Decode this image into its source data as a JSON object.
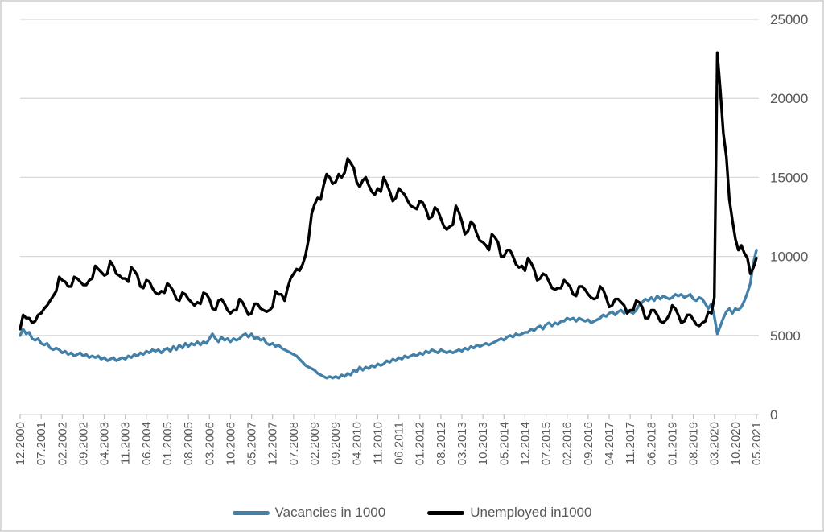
{
  "chart_data": {
    "type": "line",
    "title": "",
    "xlabel": "",
    "ylabel": "",
    "ylim": [
      0,
      25000
    ],
    "y_ticks": [
      0,
      5000,
      10000,
      15000,
      20000,
      25000
    ],
    "grid": true,
    "y_axis_side": "right",
    "x_label_rotation": -90,
    "legend_position": "bottom",
    "x_unit": "month",
    "months_between_ticks": 7,
    "x_tick_labels": [
      "12.2000",
      "07.2001",
      "02.2002",
      "09.2002",
      "04.2003",
      "11.2003",
      "06.2004",
      "01.2005",
      "08.2005",
      "03.2006",
      "10.2006",
      "05.2007",
      "12.2007",
      "07.2008",
      "02.2009",
      "09.2009",
      "04.2010",
      "11.2010",
      "06.2011",
      "01.2012",
      "08.2012",
      "03.2013",
      "10.2013",
      "05.2014",
      "12.2014",
      "07.2015",
      "02.2016",
      "09.2016",
      "04.2017",
      "11.2017",
      "06.2018",
      "01.2019",
      "08.2019",
      "03.2020",
      "10.2020",
      "05.2021"
    ],
    "series": [
      {
        "name": "Vacancies in 1000",
        "color": "#4380a8",
        "values": [
          5000,
          5400,
          5100,
          5200,
          4800,
          4700,
          4800,
          4500,
          4400,
          4500,
          4200,
          4100,
          4200,
          4100,
          3900,
          4000,
          3800,
          3900,
          3700,
          3800,
          3900,
          3700,
          3800,
          3600,
          3700,
          3600,
          3700,
          3500,
          3600,
          3400,
          3500,
          3600,
          3400,
          3500,
          3600,
          3500,
          3700,
          3600,
          3800,
          3700,
          3900,
          3800,
          4000,
          3900,
          4100,
          4000,
          4100,
          3900,
          4100,
          4200,
          4000,
          4300,
          4100,
          4400,
          4200,
          4500,
          4300,
          4500,
          4400,
          4600,
          4400,
          4600,
          4500,
          4800,
          5100,
          4800,
          4600,
          4900,
          4700,
          4800,
          4600,
          4800,
          4700,
          4800,
          5000,
          5100,
          4900,
          5100,
          4800,
          4900,
          4700,
          4800,
          4500,
          4400,
          4500,
          4300,
          4400,
          4200,
          4100,
          4000,
          3900,
          3800,
          3700,
          3500,
          3300,
          3100,
          3000,
          2900,
          2800,
          2600,
          2500,
          2400,
          2300,
          2400,
          2300,
          2400,
          2300,
          2500,
          2400,
          2600,
          2500,
          2800,
          2700,
          3000,
          2800,
          3000,
          2900,
          3100,
          3000,
          3200,
          3100,
          3200,
          3400,
          3300,
          3500,
          3400,
          3600,
          3500,
          3700,
          3600,
          3700,
          3800,
          3700,
          3900,
          3800,
          4000,
          3900,
          4100,
          4000,
          3900,
          4100,
          4000,
          3900,
          4000,
          3900,
          4000,
          4100,
          4000,
          4200,
          4100,
          4300,
          4200,
          4400,
          4300,
          4400,
          4500,
          4400,
          4500,
          4600,
          4700,
          4800,
          4700,
          4900,
          5000,
          4900,
          5100,
          5000,
          5100,
          5200,
          5200,
          5400,
          5300,
          5500,
          5600,
          5400,
          5700,
          5800,
          5600,
          5800,
          5700,
          5900,
          5900,
          6100,
          6000,
          6100,
          5900,
          6100,
          6000,
          5900,
          6000,
          5800,
          5900,
          6000,
          6100,
          6300,
          6200,
          6400,
          6500,
          6300,
          6500,
          6600,
          6400,
          6600,
          6500,
          6400,
          6600,
          6900,
          7100,
          7300,
          7200,
          7400,
          7200,
          7500,
          7300,
          7500,
          7400,
          7300,
          7400,
          7600,
          7500,
          7600,
          7400,
          7500,
          7600,
          7300,
          7200,
          7400,
          7300,
          7000,
          6700,
          7000,
          6200,
          5100,
          5600,
          6100,
          6500,
          6700,
          6400,
          6700,
          6600,
          6800,
          7200,
          7700,
          8300,
          9600,
          10400
        ]
      },
      {
        "name": "Unemployed in1000",
        "color": "#000000",
        "values": [
          5400,
          6300,
          6100,
          6100,
          5800,
          5900,
          6300,
          6400,
          6700,
          6900,
          7200,
          7500,
          7800,
          8700,
          8500,
          8400,
          8100,
          8100,
          8700,
          8600,
          8400,
          8200,
          8200,
          8500,
          8600,
          9400,
          9200,
          9000,
          8800,
          8900,
          9700,
          9400,
          8900,
          8800,
          8600,
          8600,
          8400,
          9300,
          9100,
          8800,
          8100,
          8000,
          8500,
          8400,
          8000,
          7700,
          7600,
          7800,
          7700,
          8300,
          8100,
          7800,
          7300,
          7200,
          7700,
          7600,
          7300,
          7100,
          6900,
          7100,
          7000,
          7700,
          7600,
          7300,
          6700,
          6600,
          7200,
          7300,
          7000,
          6600,
          6400,
          6600,
          6600,
          7300,
          7100,
          6700,
          6300,
          6400,
          7000,
          7000,
          6700,
          6600,
          6500,
          6600,
          6800,
          7800,
          7600,
          7600,
          7200,
          8000,
          8600,
          8900,
          9200,
          9100,
          9500,
          10100,
          11100,
          12700,
          13300,
          13700,
          13600,
          14500,
          15200,
          15000,
          14600,
          14700,
          15200,
          15000,
          15300,
          16200,
          15900,
          15600,
          14700,
          14400,
          14800,
          15000,
          14500,
          14100,
          13900,
          14300,
          14100,
          15000,
          14600,
          14100,
          13500,
          13700,
          14300,
          14100,
          13900,
          13500,
          13200,
          13100,
          13000,
          13500,
          13400,
          13000,
          12400,
          12500,
          13100,
          12900,
          12400,
          11900,
          11700,
          11900,
          12000,
          13200,
          12800,
          12200,
          11400,
          11600,
          12200,
          12000,
          11400,
          11000,
          10900,
          10700,
          10400,
          11400,
          11200,
          10900,
          10000,
          10000,
          10400,
          10400,
          10000,
          9500,
          9300,
          9400,
          9100,
          9900,
          9600,
          9200,
          8500,
          8600,
          8900,
          8800,
          8400,
          8000,
          7900,
          8000,
          8000,
          8500,
          8300,
          8100,
          7600,
          7500,
          8100,
          8100,
          7900,
          7600,
          7400,
          7300,
          7400,
          8100,
          7900,
          7400,
          6800,
          6900,
          7300,
          7300,
          7100,
          6900,
          6400,
          6600,
          6600,
          7200,
          7100,
          6800,
          6100,
          6100,
          6600,
          6600,
          6300,
          5900,
          5800,
          6000,
          6300,
          6900,
          6700,
          6300,
          5800,
          5900,
          6300,
          6300,
          6000,
          5700,
          5600,
          5800,
          5900,
          6500,
          6400,
          7400,
          22900,
          20500,
          17800,
          16300,
          13600,
          12300,
          11100,
          10400,
          10700,
          10200,
          9900,
          8900,
          9300,
          9900
        ]
      }
    ]
  },
  "legend": {
    "items": [
      {
        "label": "Vacancies in 1000",
        "color": "#4380a8"
      },
      {
        "label": "Unemployed in1000",
        "color": "#000000"
      }
    ]
  },
  "colors": {
    "gridline": "#d9d9d9",
    "tick": "#bfbfbf",
    "axis_text": "#595959",
    "frame_border": "#d9d9d9",
    "background": "#ffffff"
  }
}
